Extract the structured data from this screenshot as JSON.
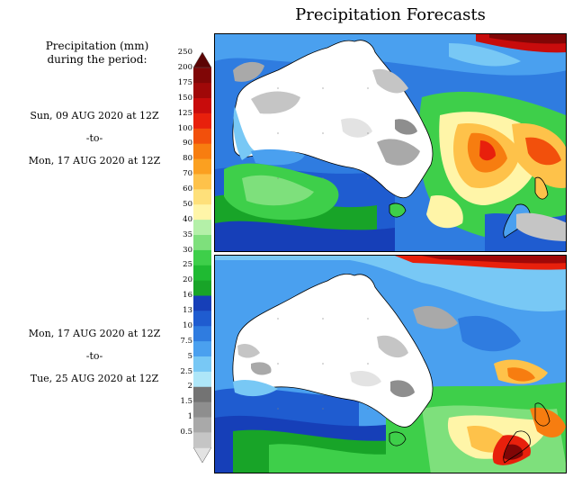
{
  "title": "Precipitation Forecasts",
  "legend": {
    "title_line1": "Precipitation (mm)",
    "title_line2": "during the period:",
    "ticks": [
      "250",
      "200",
      "175",
      "150",
      "125",
      "100",
      "90",
      "80",
      "70",
      "60",
      "50",
      "40",
      "35",
      "30",
      "25",
      "20",
      "16",
      "13",
      "10",
      "7.5",
      "5",
      "2.5",
      "2",
      "1.5",
      "1",
      "0.5"
    ],
    "colors": [
      "#e3e3e3",
      "#c5c5c5",
      "#a9a9a9",
      "#8e8e8e",
      "#737373",
      "#aee6f8",
      "#78c8f5",
      "#4aa0ef",
      "#2f7ce0",
      "#1f5cd0",
      "#163fb8",
      "#18a428",
      "#1fba32",
      "#3ecf4a",
      "#7ee07c",
      "#b4f0a8",
      "#fff5a8",
      "#fee07a",
      "#fec24a",
      "#fba020",
      "#f77d10",
      "#f2500c",
      "#e8200c",
      "#c80c0c",
      "#a00808",
      "#800606",
      "#5c0404"
    ]
  },
  "periods": [
    {
      "start": "Sun, 09 AUG 2020 at 12Z",
      "sep": "-to-",
      "end": "Mon, 17 AUG 2020 at 12Z"
    },
    {
      "start": "Mon, 17 AUG 2020 at 12Z",
      "sep": "-to-",
      "end": "Tue, 25 AUG 2020 at 12Z"
    }
  ]
}
